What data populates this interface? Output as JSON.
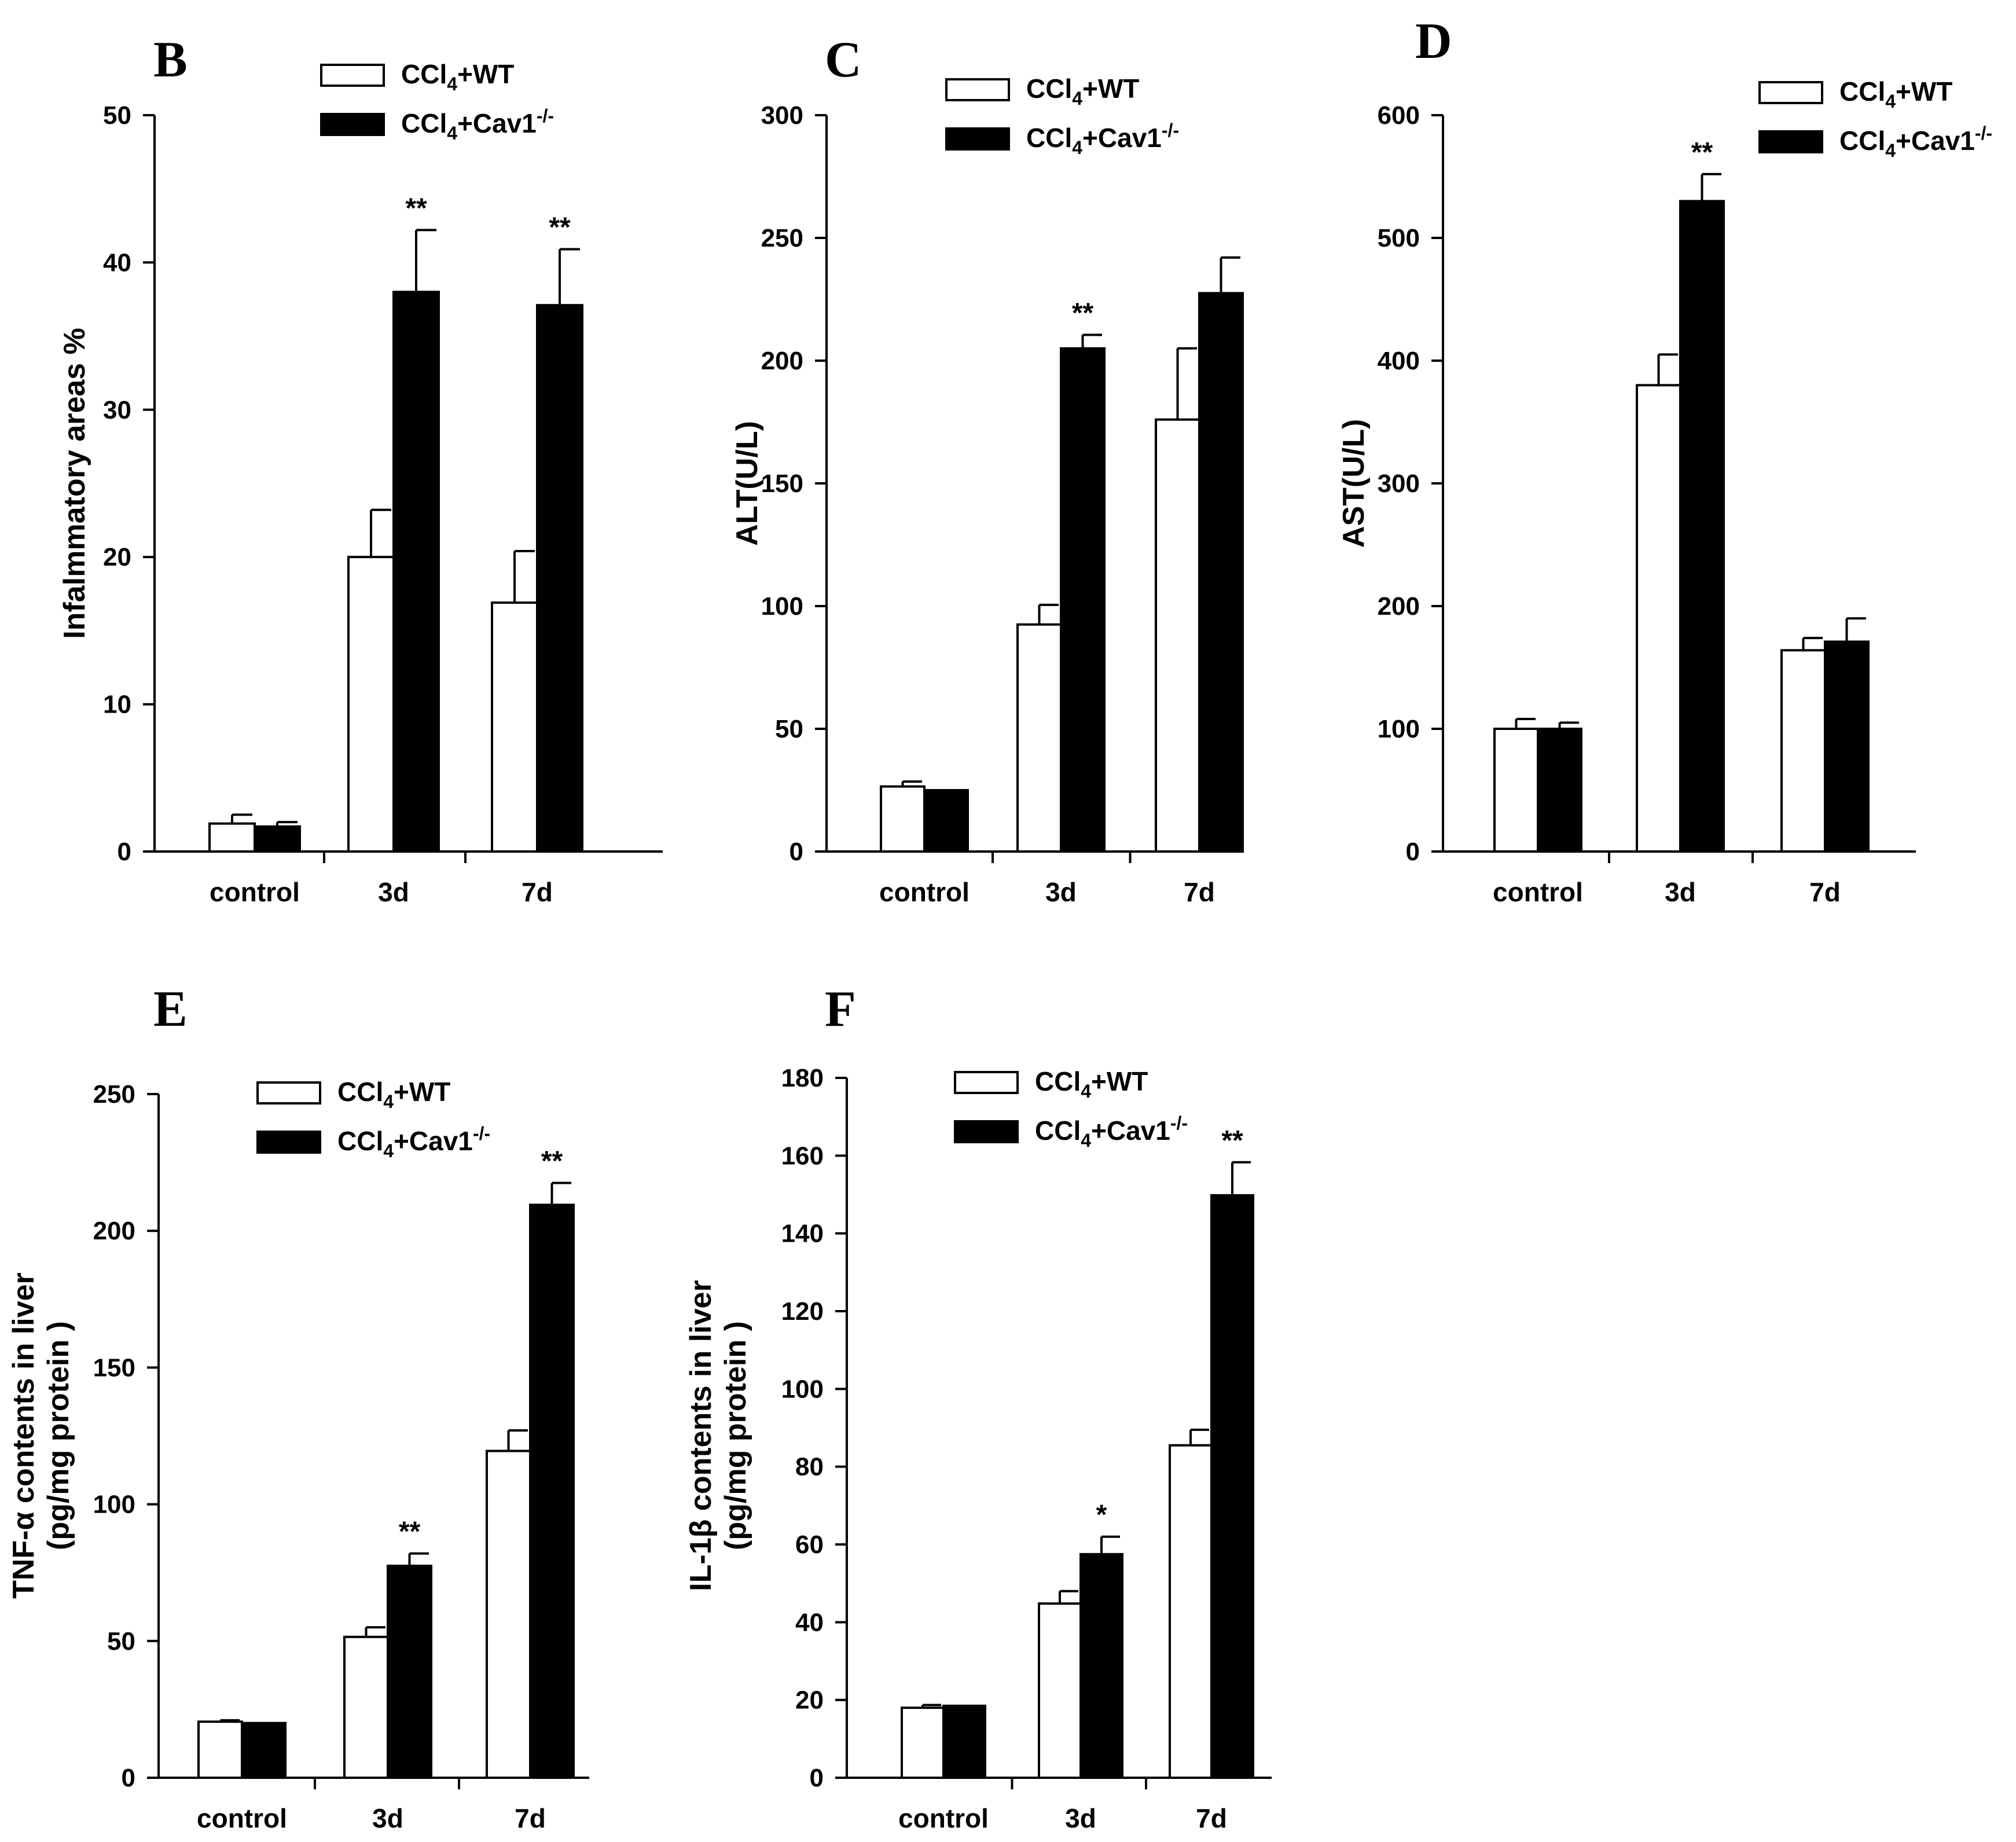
{
  "legend": {
    "wt_prefix": "CCl",
    "wt_sub": "4",
    "wt_suffix": "+WT",
    "ko_prefix": "CCl",
    "ko_sub": "4",
    "ko_suffix": "+Cav1",
    "ko_sup": "-/-"
  },
  "colors": {
    "wt_fill": "#ffffff",
    "ko_fill": "#000000",
    "stroke": "#000000"
  },
  "chart_data": [
    {
      "panel": "B",
      "type": "bar",
      "categories": [
        "control",
        "3d",
        "7d"
      ],
      "ylabel_lines": [
        "Infalmmatory areas %"
      ],
      "ylim": [
        0,
        50
      ],
      "yticks": [
        0,
        10,
        20,
        30,
        40,
        50
      ],
      "legend_position": "top-center",
      "series": [
        {
          "name": "CCl4+WT",
          "values": [
            1.9,
            20,
            16.9
          ],
          "errors": [
            0.6,
            3.2,
            3.5
          ]
        },
        {
          "name": "CCl4+Cav1-/-",
          "values": [
            1.7,
            38,
            37.1
          ],
          "errors": [
            0.3,
            4.2,
            3.8
          ]
        }
      ],
      "significance": [
        "",
        "**",
        "**"
      ]
    },
    {
      "panel": "C",
      "type": "bar",
      "categories": [
        "control",
        "3d",
        "7d"
      ],
      "ylabel_lines": [
        "ALT(U/L)"
      ],
      "ylim": [
        0,
        300
      ],
      "yticks": [
        0,
        50,
        100,
        150,
        200,
        250,
        300
      ],
      "legend_position": "top-center",
      "series": [
        {
          "name": "CCl4+WT",
          "values": [
            26.5,
            92.5,
            176
          ],
          "errors": [
            2,
            8,
            29
          ]
        },
        {
          "name": "CCl4+Cav1-/-",
          "values": [
            25,
            205,
            227.5
          ],
          "errors": [
            0,
            5.5,
            14.5
          ]
        }
      ],
      "significance": [
        "",
        "**",
        ""
      ]
    },
    {
      "panel": "D",
      "type": "bar",
      "categories": [
        "control",
        "3d",
        "7d"
      ],
      "ylabel_lines": [
        "AST(U/L)"
      ],
      "ylim": [
        0,
        600
      ],
      "yticks": [
        0,
        100,
        200,
        300,
        400,
        500,
        600
      ],
      "legend_position": "top-right",
      "series": [
        {
          "name": "CCl4+WT",
          "values": [
            100,
            380,
            164
          ],
          "errors": [
            8,
            25,
            10
          ]
        },
        {
          "name": "CCl4+Cav1-/-",
          "values": [
            100,
            530,
            171
          ],
          "errors": [
            5,
            22,
            19
          ]
        }
      ],
      "significance": [
        "",
        "**",
        ""
      ]
    },
    {
      "panel": "E",
      "type": "bar",
      "categories": [
        "control",
        "3d",
        "7d"
      ],
      "ylabel_lines": [
        "TNF-α contents in liver",
        "(pg/mg protein )"
      ],
      "ylim": [
        0,
        250
      ],
      "yticks": [
        0,
        50,
        100,
        150,
        200,
        250
      ],
      "legend_position": "top-center",
      "series": [
        {
          "name": "CCl4+WT",
          "values": [
            20.5,
            51.5,
            119.5
          ],
          "errors": [
            0.5,
            3.5,
            7.5
          ]
        },
        {
          "name": "CCl4+Cav1-/-",
          "values": [
            20,
            77.5,
            209.5
          ],
          "errors": [
            0,
            4.5,
            8
          ]
        }
      ],
      "significance": [
        "",
        "**",
        "**"
      ]
    },
    {
      "panel": "F",
      "type": "bar",
      "categories": [
        "control",
        "3d",
        "7d"
      ],
      "ylabel_lines": [
        "IL-1β contents in liver",
        "(pg/mg protein )"
      ],
      "ylim": [
        0,
        180
      ],
      "yticks": [
        0,
        20,
        40,
        60,
        80,
        100,
        120,
        140,
        160,
        180
      ],
      "legend_position": "top-center",
      "series": [
        {
          "name": "CCl4+WT",
          "values": [
            18,
            44.8,
            85.5
          ],
          "errors": [
            0.7,
            3.2,
            4
          ]
        },
        {
          "name": "CCl4+Cav1-/-",
          "values": [
            18.5,
            57.5,
            149.8
          ],
          "errors": [
            0,
            4.5,
            8.5
          ]
        }
      ],
      "significance": [
        "",
        "*",
        "**"
      ]
    }
  ]
}
